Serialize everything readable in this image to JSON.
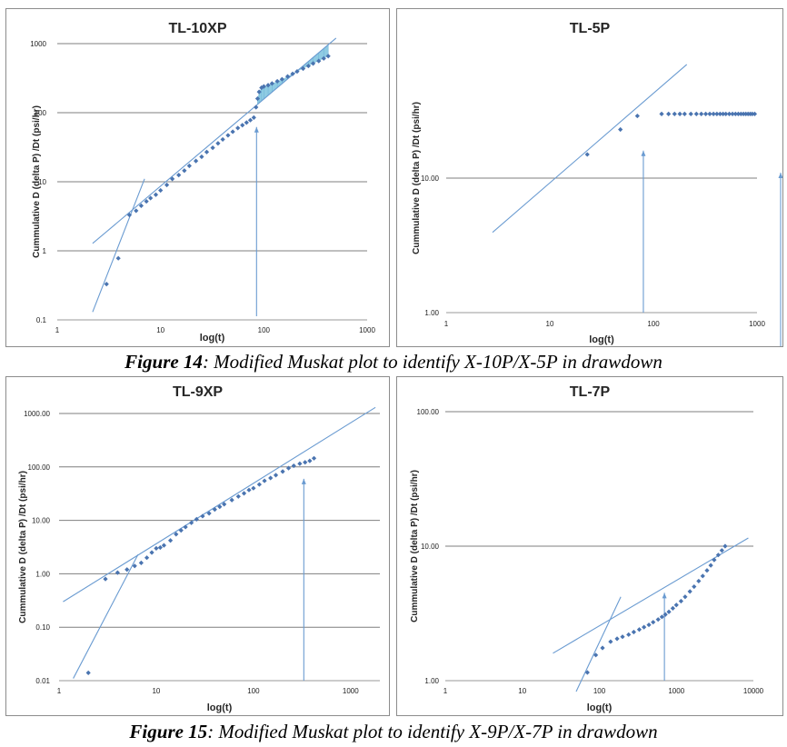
{
  "figure14": {
    "caption": {
      "label": "Figure 14",
      "text": ":  Modified Muskat plot to identify X-10P/X-5P in drawdown"
    }
  },
  "figure15": {
    "caption": {
      "label": "Figure 15",
      "text": ": Modified Muskat plot to identify X-9P/X-7P in drawdown"
    }
  },
  "chart_data": [
    {
      "type": "scatter",
      "title": "TL-10XP",
      "xlabel": "log(t)",
      "ylabel": "Cummulative   D (delta P) /Dt (psi/hr)",
      "x_scale": "log",
      "y_scale": "log",
      "xlim": [
        1,
        1000
      ],
      "ylim": [
        0.1,
        1000
      ],
      "x_ticks": [
        "1",
        "10",
        "100",
        "1000"
      ],
      "y_ticks": [
        "0.1",
        "1",
        "10",
        "100",
        "1000"
      ],
      "gridlines": "horizontal",
      "series": [
        {
          "x": [
            3,
            3.9,
            5,
            5.8,
            6.5,
            7.3,
            8,
            9,
            10,
            11.5,
            13,
            15,
            17,
            19,
            22,
            25,
            28,
            32,
            36,
            40,
            45,
            50,
            56,
            62,
            68,
            74,
            80,
            84,
            87,
            90,
            95,
            100,
            110,
            120,
            135,
            150,
            170,
            190,
            210,
            240,
            270,
            300,
            340,
            380,
            420
          ],
          "y": [
            0.33,
            0.78,
            3.3,
            3.8,
            4.5,
            5.2,
            5.8,
            6.5,
            7.5,
            9,
            11,
            12.5,
            14.5,
            17,
            20,
            23,
            27,
            31,
            36,
            41,
            47,
            53,
            60,
            66,
            72,
            78,
            85,
            120,
            160,
            200,
            230,
            240,
            250,
            265,
            285,
            305,
            335,
            365,
            395,
            435,
            475,
            515,
            560,
            610,
            660
          ]
        }
      ],
      "fit_lines": [
        {
          "x1": 2.2,
          "y1": 0.13,
          "x2": 7,
          "y2": 11
        },
        {
          "x1": 2.2,
          "y1": 1.28,
          "x2": 500,
          "y2": 1200
        }
      ],
      "vertical_marker_x": 85,
      "shaded_region": true
    },
    {
      "type": "scatter",
      "title": "TL-5P",
      "xlabel": "log(t)",
      "ylabel": "Cummulative   D (delta P) /Dt (psi/hr)",
      "x_scale": "log",
      "y_scale": "log",
      "xlim": [
        1,
        1000
      ],
      "ylim": [
        1,
        100
      ],
      "x_ticks": [
        "1",
        "10",
        "100",
        "1000"
      ],
      "y_ticks": [
        "1.00",
        "10.00"
      ],
      "gridlines": "horizontal",
      "series": [
        {
          "x": [
            23,
            48,
            70,
            120,
            140,
            160,
            180,
            200,
            230,
            260,
            290,
            320,
            350,
            380,
            410,
            440,
            470,
            500,
            540,
            580,
            620,
            660,
            700,
            740,
            780,
            820,
            860,
            900,
            950
          ],
          "y": [
            15,
            23,
            29,
            30,
            30,
            30,
            30,
            30,
            30,
            30,
            30,
            30,
            30,
            30,
            30,
            30,
            30,
            30,
            30,
            30,
            30,
            30,
            30,
            30,
            30,
            30,
            30,
            30,
            30
          ]
        }
      ],
      "fit_lines": [
        {
          "x1": 2.8,
          "y1": 3.95,
          "x2": 210,
          "y2": 70
        }
      ],
      "vertical_marker_x": 80
    },
    {
      "type": "scatter",
      "title": "TL-9XP",
      "xlabel": "log(t)",
      "ylabel": "Cummulative   D (delta P) /Dt (psi/hr)",
      "x_scale": "log",
      "y_scale": "log",
      "xlim": [
        1,
        2000
      ],
      "ylim": [
        0.01,
        1000
      ],
      "x_ticks": [
        "1",
        "10",
        "100",
        "1000"
      ],
      "y_ticks": [
        "0.01",
        "0.10",
        "1.00",
        "10.00",
        "100.00",
        "1000.00"
      ],
      "gridlines": "horizontal",
      "series": [
        {
          "x": [
            2,
            3,
            4,
            5,
            6,
            7,
            8,
            9,
            10,
            11,
            12,
            14,
            16,
            18,
            20,
            23,
            26,
            30,
            35,
            40,
            45,
            50,
            60,
            70,
            80,
            90,
            100,
            115,
            130,
            150,
            170,
            200,
            230,
            260,
            300,
            340,
            380,
            420
          ],
          "y": [
            0.014,
            0.8,
            1.05,
            1.2,
            1.4,
            1.6,
            2,
            2.5,
            3,
            3.1,
            3.4,
            4.2,
            5.5,
            6.5,
            7.5,
            9,
            10.5,
            12,
            13.5,
            16,
            18,
            20,
            24,
            28,
            32,
            37,
            40,
            47,
            55,
            62,
            70,
            82,
            95,
            105,
            115,
            122,
            130,
            145
          ]
        }
      ],
      "fit_lines": [
        {
          "x1": 1.4,
          "y1": 0.011,
          "x2": 6.5,
          "y2": 2.3
        },
        {
          "x1": 1.1,
          "y1": 0.3,
          "x2": 1800,
          "y2": 1300
        }
      ],
      "vertical_marker_x": 330
    },
    {
      "type": "scatter",
      "title": "TL-7P",
      "xlabel": "log(t)",
      "ylabel": "Cummulative   D (delta P) /Dt (psi/hr)",
      "x_scale": "log",
      "y_scale": "log",
      "xlim": [
        1,
        10000
      ],
      "ylim": [
        1,
        100
      ],
      "x_ticks": [
        "1",
        "10",
        "100",
        "1000",
        "10000"
      ],
      "y_ticks": [
        "1.00",
        "10.00",
        "100.00"
      ],
      "gridlines": "horizontal",
      "series": [
        {
          "x": [
            70,
            90,
            110,
            140,
            170,
            200,
            240,
            280,
            330,
            380,
            440,
            500,
            580,
            650,
            720,
            800,
            900,
            1000,
            1150,
            1300,
            1500,
            1700,
            1950,
            2200,
            2500,
            2800,
            3100,
            3500,
            3900,
            4300
          ],
          "y": [
            1.15,
            1.55,
            1.75,
            1.95,
            2.05,
            2.12,
            2.2,
            2.3,
            2.4,
            2.5,
            2.6,
            2.72,
            2.85,
            2.98,
            3.1,
            3.25,
            3.45,
            3.65,
            3.9,
            4.2,
            4.6,
            5,
            5.5,
            6,
            6.6,
            7.2,
            7.9,
            8.6,
            9.3,
            10
          ]
        }
      ],
      "fit_lines": [
        {
          "x1": 50,
          "y1": 0.83,
          "x2": 190,
          "y2": 4.2
        },
        {
          "x1": 25,
          "y1": 1.6,
          "x2": 8600,
          "y2": 11.5
        }
      ],
      "vertical_marker_x": 700
    }
  ]
}
